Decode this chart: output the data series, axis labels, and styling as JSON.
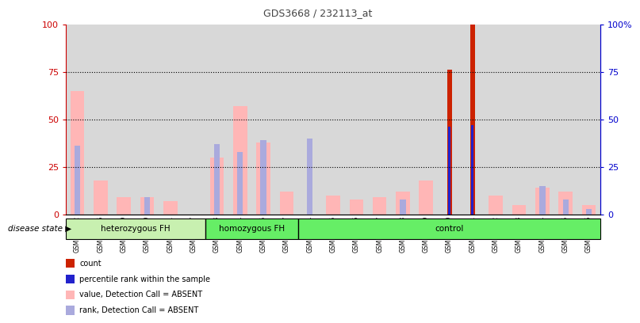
{
  "title": "GDS3668 / 232113_at",
  "samples": [
    "GSM140232",
    "GSM140236",
    "GSM140239",
    "GSM140240",
    "GSM140241",
    "GSM140257",
    "GSM140233",
    "GSM140234",
    "GSM140235",
    "GSM140237",
    "GSM140244",
    "GSM140245",
    "GSM140246",
    "GSM140247",
    "GSM140248",
    "GSM140249",
    "GSM140250",
    "GSM140251",
    "GSM140252",
    "GSM140253",
    "GSM140254",
    "GSM140255",
    "GSM140256"
  ],
  "groups": [
    {
      "label": "heterozygous FH",
      "start": 0,
      "end": 6,
      "color": "#c8f0b0"
    },
    {
      "label": "homozygous FH",
      "start": 6,
      "end": 10,
      "color": "#66ee66"
    },
    {
      "label": "control",
      "start": 10,
      "end": 23,
      "color": "#66ee66"
    }
  ],
  "value_absent": [
    65,
    18,
    9,
    9,
    7,
    0,
    30,
    57,
    38,
    12,
    0,
    10,
    8,
    9,
    12,
    18,
    0,
    0,
    10,
    5,
    14,
    12,
    5
  ],
  "rank_absent": [
    36,
    0,
    0,
    9,
    0,
    0,
    37,
    33,
    39,
    0,
    40,
    0,
    0,
    0,
    8,
    0,
    0,
    0,
    0,
    0,
    15,
    8,
    3
  ],
  "count_val": [
    0,
    0,
    0,
    0,
    0,
    0,
    0,
    0,
    0,
    0,
    0,
    0,
    0,
    0,
    0,
    0,
    76,
    100,
    0,
    0,
    0,
    0,
    0
  ],
  "pct_rank": [
    0,
    0,
    0,
    0,
    0,
    0,
    0,
    0,
    0,
    0,
    0,
    0,
    0,
    0,
    0,
    0,
    46,
    47,
    0,
    0,
    0,
    0,
    0
  ],
  "left_axis_color": "#cc0000",
  "right_axis_color": "#0000cc",
  "title_color": "#444444",
  "legend_items": [
    {
      "color": "#cc2200",
      "label": "count"
    },
    {
      "color": "#2222cc",
      "label": "percentile rank within the sample"
    },
    {
      "color": "#ffb6b6",
      "label": "value, Detection Call = ABSENT"
    },
    {
      "color": "#aaaadd",
      "label": "rank, Detection Call = ABSENT"
    }
  ],
  "disease_state_label": "disease state"
}
